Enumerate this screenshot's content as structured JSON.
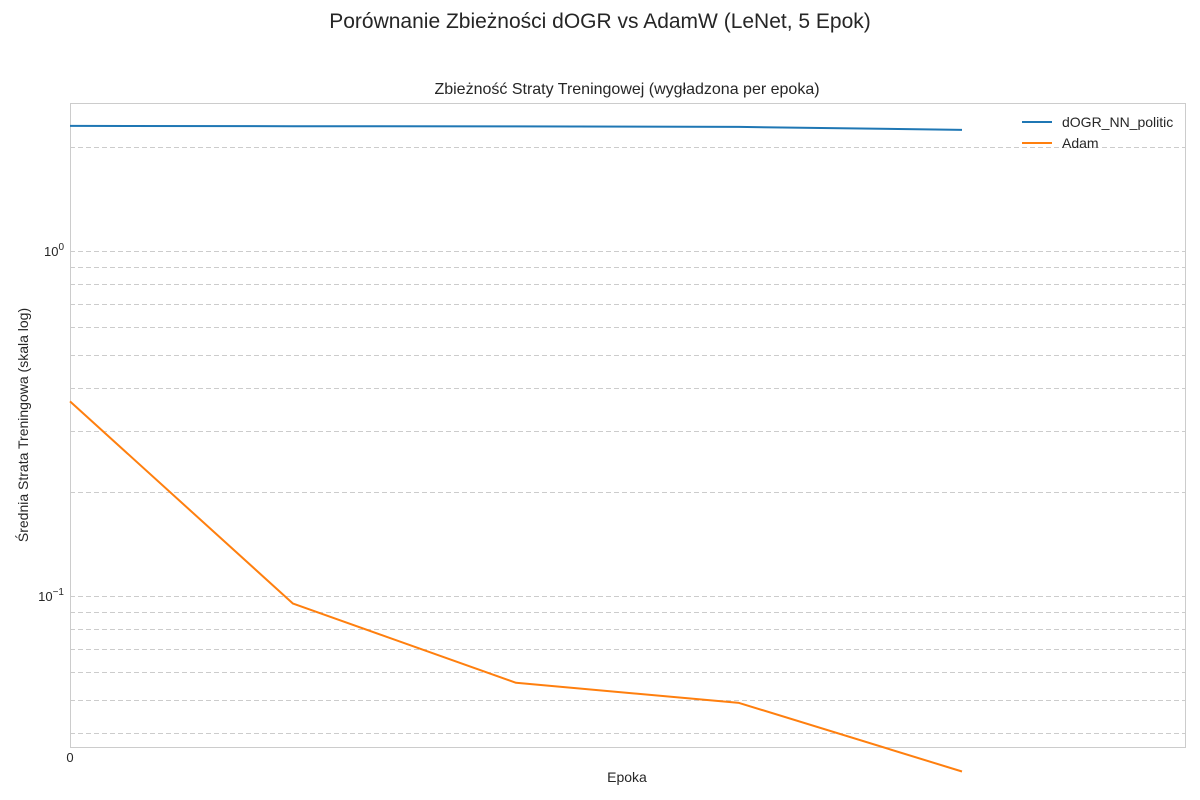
{
  "figure": {
    "suptitle": "Porównanie Zbieżności dOGR vs AdamW (LeNet, 5 Epok)"
  },
  "chart_data": {
    "type": "line",
    "title": "Zbieżność Straty Treningowej (wygładzona per epoka)",
    "xlabel": "Epoka",
    "ylabel": "Średnia Strata Treningowa (skala log)",
    "yscale": "log",
    "xlim": [
      0,
      5
    ],
    "ylim": [
      0.0365,
      2.68
    ],
    "x_ticks": [
      {
        "value": 0,
        "label": "0"
      }
    ],
    "y_ticks": [
      {
        "value": 1,
        "base": "10",
        "exp": "0"
      },
      {
        "value": 0.1,
        "base": "10",
        "exp": "−1"
      }
    ],
    "grid": true,
    "legend_position": "top-right",
    "x": [
      0,
      1,
      2,
      3,
      4
    ],
    "series": [
      {
        "name": "dOGR_NN_politic",
        "color": "#1f77b4",
        "values": [
          2.3,
          2.295,
          2.293,
          2.285,
          2.24
        ]
      },
      {
        "name": "Adam",
        "color": "#ff7f0e",
        "values": [
          0.366,
          0.095,
          0.056,
          0.049,
          0.031
        ]
      }
    ]
  }
}
